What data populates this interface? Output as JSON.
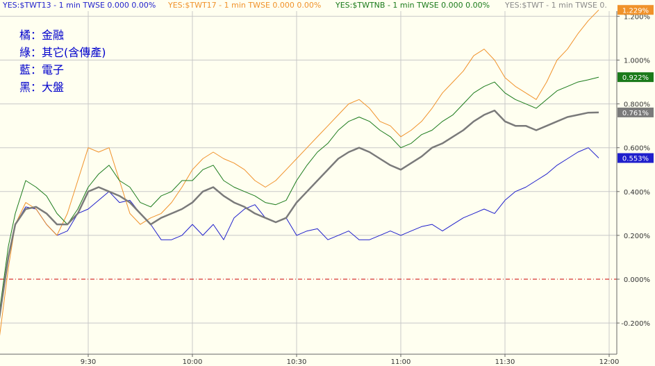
{
  "header_items": [
    {
      "text": "YES:$TWT13 - 1 min  TWSE  0.000  0.00%",
      "color": "#1f1fcc"
    },
    {
      "text": "YES:$TWT17 - 1 min  TWSE  0.000  0.00%",
      "color": "#f0922a"
    },
    {
      "text": "YES:$TWTNB - 1 min  TWSE  0.000  0.00%",
      "color": "#1a7a1a"
    },
    {
      "text": "YES:$TWT - 1 min  TWSE  0.",
      "color": "#8a8a8a"
    }
  ],
  "legend": [
    {
      "text": "橘：金融"
    },
    {
      "text": "綠：其它(含傳產)"
    },
    {
      "text": "藍：電子"
    },
    {
      "text": "黑：大盤"
    }
  ],
  "chart_data": {
    "type": "line",
    "x_tick_labels": [
      "9:30",
      "10:00",
      "10:30",
      "11:00",
      "11:30",
      "12:00"
    ],
    "y_tick_labels": [
      "1.200%",
      "1.000%",
      "0.800%",
      "0.600%",
      "0.400%",
      "0.200%",
      "0.000%",
      "-0.200%"
    ],
    "y_ticks": [
      1.2,
      1.0,
      0.8,
      0.6,
      0.4,
      0.2,
      0.0,
      -0.2
    ],
    "ylim": [
      -0.33,
      1.25
    ],
    "xlim": [
      "09:01",
      "12:00"
    ],
    "grid": true,
    "reference_line": 0.0,
    "series": [
      {
        "id": "electronics",
        "color": "#1f1fcc",
        "width": 1,
        "last_label": "0.553%",
        "points": [
          [
            "09:01",
            -0.05
          ],
          [
            "09:04",
            -0.2
          ],
          [
            "09:07",
            0.1
          ],
          [
            "09:09",
            0.25
          ],
          [
            "09:12",
            0.33
          ],
          [
            "09:15",
            0.32
          ],
          [
            "09:18",
            0.25
          ],
          [
            "09:21",
            0.2
          ],
          [
            "09:24",
            0.22
          ],
          [
            "09:27",
            0.3
          ],
          [
            "09:30",
            0.32
          ],
          [
            "09:33",
            0.36
          ],
          [
            "09:36",
            0.4
          ],
          [
            "09:39",
            0.35
          ],
          [
            "09:42",
            0.36
          ],
          [
            "09:45",
            0.3
          ],
          [
            "09:48",
            0.25
          ],
          [
            "09:51",
            0.18
          ],
          [
            "09:54",
            0.18
          ],
          [
            "09:57",
            0.2
          ],
          [
            "10:00",
            0.25
          ],
          [
            "10:03",
            0.2
          ],
          [
            "10:06",
            0.25
          ],
          [
            "10:09",
            0.18
          ],
          [
            "10:12",
            0.28
          ],
          [
            "10:15",
            0.32
          ],
          [
            "10:18",
            0.34
          ],
          [
            "10:21",
            0.28
          ],
          [
            "10:24",
            0.26
          ],
          [
            "10:27",
            0.28
          ],
          [
            "10:30",
            0.2
          ],
          [
            "10:33",
            0.22
          ],
          [
            "10:36",
            0.23
          ],
          [
            "10:39",
            0.18
          ],
          [
            "10:42",
            0.2
          ],
          [
            "10:45",
            0.22
          ],
          [
            "10:48",
            0.18
          ],
          [
            "10:51",
            0.18
          ],
          [
            "10:54",
            0.2
          ],
          [
            "10:57",
            0.22
          ],
          [
            "11:00",
            0.2
          ],
          [
            "11:03",
            0.22
          ],
          [
            "11:06",
            0.24
          ],
          [
            "11:09",
            0.25
          ],
          [
            "11:12",
            0.22
          ],
          [
            "11:15",
            0.25
          ],
          [
            "11:18",
            0.28
          ],
          [
            "11:21",
            0.3
          ],
          [
            "11:24",
            0.32
          ],
          [
            "11:27",
            0.3
          ],
          [
            "11:30",
            0.36
          ],
          [
            "11:33",
            0.4
          ],
          [
            "11:36",
            0.42
          ],
          [
            "11:39",
            0.45
          ],
          [
            "11:42",
            0.48
          ],
          [
            "11:45",
            0.52
          ],
          [
            "11:48",
            0.55
          ],
          [
            "11:51",
            0.58
          ],
          [
            "11:54",
            0.6
          ],
          [
            "11:57",
            0.553
          ]
        ]
      },
      {
        "id": "finance",
        "color": "#f0922a",
        "width": 1,
        "last_label": "1.229%",
        "points": [
          [
            "09:01",
            -0.2
          ],
          [
            "09:04",
            -0.32
          ],
          [
            "09:07",
            0.05
          ],
          [
            "09:09",
            0.25
          ],
          [
            "09:12",
            0.35
          ],
          [
            "09:15",
            0.32
          ],
          [
            "09:18",
            0.25
          ],
          [
            "09:21",
            0.2
          ],
          [
            "09:24",
            0.3
          ],
          [
            "09:27",
            0.45
          ],
          [
            "09:30",
            0.6
          ],
          [
            "09:33",
            0.58
          ],
          [
            "09:36",
            0.6
          ],
          [
            "09:39",
            0.45
          ],
          [
            "09:42",
            0.3
          ],
          [
            "09:45",
            0.25
          ],
          [
            "09:48",
            0.28
          ],
          [
            "09:51",
            0.3
          ],
          [
            "09:54",
            0.35
          ],
          [
            "09:57",
            0.42
          ],
          [
            "10:00",
            0.5
          ],
          [
            "10:03",
            0.55
          ],
          [
            "10:06",
            0.58
          ],
          [
            "10:09",
            0.55
          ],
          [
            "10:12",
            0.53
          ],
          [
            "10:15",
            0.5
          ],
          [
            "10:18",
            0.45
          ],
          [
            "10:21",
            0.42
          ],
          [
            "10:24",
            0.45
          ],
          [
            "10:27",
            0.5
          ],
          [
            "10:30",
            0.55
          ],
          [
            "10:33",
            0.6
          ],
          [
            "10:36",
            0.65
          ],
          [
            "10:39",
            0.7
          ],
          [
            "10:42",
            0.75
          ],
          [
            "10:45",
            0.8
          ],
          [
            "10:48",
            0.82
          ],
          [
            "10:51",
            0.78
          ],
          [
            "10:54",
            0.72
          ],
          [
            "10:57",
            0.7
          ],
          [
            "11:00",
            0.65
          ],
          [
            "11:03",
            0.68
          ],
          [
            "11:06",
            0.72
          ],
          [
            "11:09",
            0.78
          ],
          [
            "11:12",
            0.85
          ],
          [
            "11:15",
            0.9
          ],
          [
            "11:18",
            0.95
          ],
          [
            "11:21",
            1.02
          ],
          [
            "11:24",
            1.05
          ],
          [
            "11:27",
            1.0
          ],
          [
            "11:30",
            0.92
          ],
          [
            "11:33",
            0.88
          ],
          [
            "11:36",
            0.85
          ],
          [
            "11:39",
            0.82
          ],
          [
            "11:42",
            0.9
          ],
          [
            "11:45",
            1.0
          ],
          [
            "11:48",
            1.05
          ],
          [
            "11:51",
            1.12
          ],
          [
            "11:54",
            1.18
          ],
          [
            "11:57",
            1.229
          ]
        ]
      },
      {
        "id": "other",
        "color": "#1a7a1a",
        "width": 1,
        "last_label": "0.922%",
        "points": [
          [
            "09:01",
            -0.1
          ],
          [
            "09:04",
            -0.2
          ],
          [
            "09:07",
            0.15
          ],
          [
            "09:09",
            0.3
          ],
          [
            "09:12",
            0.45
          ],
          [
            "09:15",
            0.42
          ],
          [
            "09:18",
            0.38
          ],
          [
            "09:21",
            0.3
          ],
          [
            "09:24",
            0.25
          ],
          [
            "09:27",
            0.32
          ],
          [
            "09:30",
            0.42
          ],
          [
            "09:33",
            0.48
          ],
          [
            "09:36",
            0.52
          ],
          [
            "09:39",
            0.45
          ],
          [
            "09:42",
            0.42
          ],
          [
            "09:45",
            0.35
          ],
          [
            "09:48",
            0.33
          ],
          [
            "09:51",
            0.38
          ],
          [
            "09:54",
            0.4
          ],
          [
            "09:57",
            0.45
          ],
          [
            "10:00",
            0.45
          ],
          [
            "10:03",
            0.5
          ],
          [
            "10:06",
            0.52
          ],
          [
            "10:09",
            0.45
          ],
          [
            "10:12",
            0.42
          ],
          [
            "10:15",
            0.4
          ],
          [
            "10:18",
            0.38
          ],
          [
            "10:21",
            0.35
          ],
          [
            "10:24",
            0.34
          ],
          [
            "10:27",
            0.36
          ],
          [
            "10:30",
            0.45
          ],
          [
            "10:33",
            0.52
          ],
          [
            "10:36",
            0.58
          ],
          [
            "10:39",
            0.62
          ],
          [
            "10:42",
            0.68
          ],
          [
            "10:45",
            0.72
          ],
          [
            "10:48",
            0.74
          ],
          [
            "10:51",
            0.72
          ],
          [
            "10:54",
            0.68
          ],
          [
            "10:57",
            0.65
          ],
          [
            "11:00",
            0.6
          ],
          [
            "11:03",
            0.62
          ],
          [
            "11:06",
            0.66
          ],
          [
            "11:09",
            0.68
          ],
          [
            "11:12",
            0.72
          ],
          [
            "11:15",
            0.75
          ],
          [
            "11:18",
            0.8
          ],
          [
            "11:21",
            0.85
          ],
          [
            "11:24",
            0.88
          ],
          [
            "11:27",
            0.9
          ],
          [
            "11:30",
            0.85
          ],
          [
            "11:33",
            0.82
          ],
          [
            "11:36",
            0.8
          ],
          [
            "11:39",
            0.78
          ],
          [
            "11:42",
            0.82
          ],
          [
            "11:45",
            0.86
          ],
          [
            "11:48",
            0.88
          ],
          [
            "11:51",
            0.9
          ],
          [
            "11:54",
            0.91
          ],
          [
            "11:57",
            0.922
          ]
        ]
      },
      {
        "id": "market",
        "color": "#7a7a7a",
        "width": 2.5,
        "last_label": "0.761%",
        "points": [
          [
            "09:01",
            -0.12
          ],
          [
            "09:04",
            -0.22
          ],
          [
            "09:07",
            0.1
          ],
          [
            "09:09",
            0.25
          ],
          [
            "09:12",
            0.32
          ],
          [
            "09:15",
            0.33
          ],
          [
            "09:18",
            0.3
          ],
          [
            "09:21",
            0.25
          ],
          [
            "09:24",
            0.25
          ],
          [
            "09:27",
            0.3
          ],
          [
            "09:30",
            0.4
          ],
          [
            "09:33",
            0.42
          ],
          [
            "09:36",
            0.4
          ],
          [
            "09:39",
            0.38
          ],
          [
            "09:42",
            0.35
          ],
          [
            "09:45",
            0.3
          ],
          [
            "09:48",
            0.25
          ],
          [
            "09:51",
            0.28
          ],
          [
            "09:54",
            0.3
          ],
          [
            "09:57",
            0.32
          ],
          [
            "10:00",
            0.35
          ],
          [
            "10:03",
            0.4
          ],
          [
            "10:06",
            0.42
          ],
          [
            "10:09",
            0.38
          ],
          [
            "10:12",
            0.35
          ],
          [
            "10:15",
            0.33
          ],
          [
            "10:18",
            0.3
          ],
          [
            "10:21",
            0.28
          ],
          [
            "10:24",
            0.26
          ],
          [
            "10:27",
            0.28
          ],
          [
            "10:30",
            0.35
          ],
          [
            "10:33",
            0.4
          ],
          [
            "10:36",
            0.45
          ],
          [
            "10:39",
            0.5
          ],
          [
            "10:42",
            0.55
          ],
          [
            "10:45",
            0.58
          ],
          [
            "10:48",
            0.6
          ],
          [
            "10:51",
            0.58
          ],
          [
            "10:54",
            0.55
          ],
          [
            "10:57",
            0.52
          ],
          [
            "11:00",
            0.5
          ],
          [
            "11:03",
            0.53
          ],
          [
            "11:06",
            0.56
          ],
          [
            "11:09",
            0.6
          ],
          [
            "11:12",
            0.62
          ],
          [
            "11:15",
            0.65
          ],
          [
            "11:18",
            0.68
          ],
          [
            "11:21",
            0.72
          ],
          [
            "11:24",
            0.75
          ],
          [
            "11:27",
            0.77
          ],
          [
            "11:30",
            0.72
          ],
          [
            "11:33",
            0.7
          ],
          [
            "11:36",
            0.7
          ],
          [
            "11:39",
            0.68
          ],
          [
            "11:42",
            0.7
          ],
          [
            "11:45",
            0.72
          ],
          [
            "11:48",
            0.74
          ],
          [
            "11:51",
            0.75
          ],
          [
            "11:54",
            0.76
          ],
          [
            "11:57",
            0.761
          ]
        ]
      }
    ]
  }
}
